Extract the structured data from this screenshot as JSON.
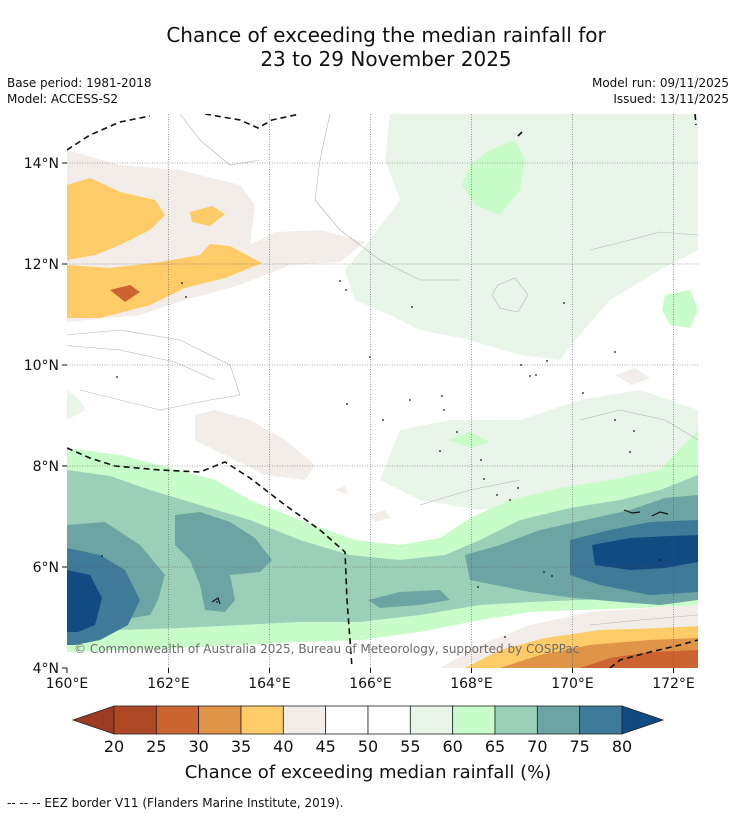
{
  "title_line1": "Chance of exceeding the median rainfall for",
  "title_line2": "23 to 29 November 2025",
  "base_period": "Base period: 1981-2018",
  "model": "Model: ACCESS-S2",
  "model_run": "Model run: 09/11/2025",
  "issued": "Issued: 13/11/2025",
  "copyright": "© Commonwealth of Australia 2025, Bureau of Meteorology, supported by COSPPac",
  "x_ticks": [
    "160°E",
    "162°E",
    "164°E",
    "166°E",
    "168°E",
    "170°E",
    "172°E"
  ],
  "y_ticks": [
    "4°N",
    "6°N",
    "8°N",
    "10°N",
    "12°N",
    "14°N"
  ],
  "colorbar": {
    "title": "Chance of exceeding median rainfall (%)",
    "ticks": [
      "20",
      "25",
      "30",
      "35",
      "40",
      "45",
      "50",
      "55",
      "60",
      "65",
      "70",
      "75",
      "80"
    ],
    "under_color": "#9c3a22",
    "over_color": "#124a82",
    "colors": [
      "#ad4824",
      "#cc6432",
      "#e09448",
      "#fdcb68",
      "#f2ede8",
      "#ffffff",
      "#ffffff",
      "#e8f5e8",
      "#c8fcc8",
      "#9ad0b8",
      "#6ca4a4",
      "#3f7a98"
    ]
  },
  "footer": "--  --  -- EEZ border V11 (Flanders Marine Institute, 2019)."
}
